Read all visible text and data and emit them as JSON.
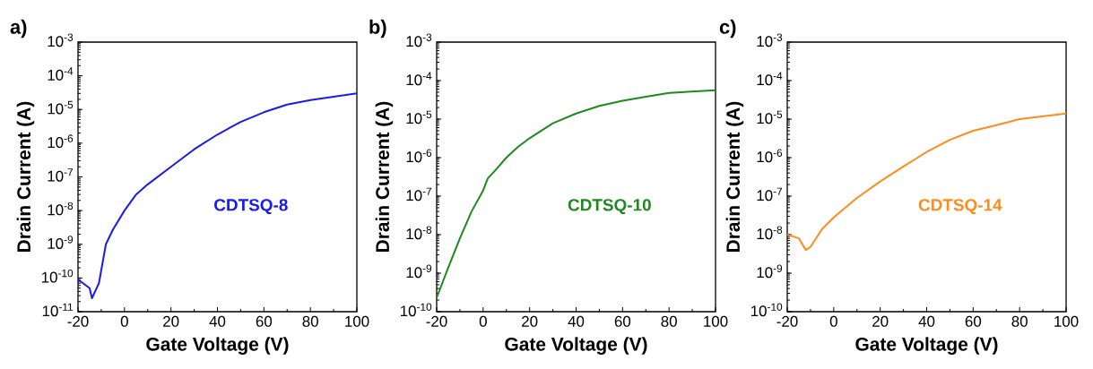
{
  "chart_data": [
    {
      "type": "line",
      "title": "a)",
      "xlabel": "Gate Voltage (V)",
      "ylabel": "Drain Current (A)",
      "log": "y",
      "xlim": [
        -20,
        100
      ],
      "xticks": [
        -20,
        0,
        20,
        40,
        60,
        80,
        100
      ],
      "ylim": [
        1e-11,
        0.001
      ],
      "yticks": [
        {
          "value": 1e-11,
          "label": "10$^{-11}$"
        },
        {
          "value": 1e-10,
          "label": "10$^{-10}$"
        },
        {
          "value": 1e-09,
          "label": "10$^{-9}$"
        },
        {
          "value": 1e-08,
          "label": "10$^{-8}$"
        },
        {
          "value": 1e-07,
          "label": "10$^{-7}$"
        },
        {
          "value": 1e-06,
          "label": "10$^{-6}$"
        },
        {
          "value": 1e-05,
          "label": "10$^{-5}$"
        },
        {
          "value": 0.0001,
          "label": "10$^{-4}$"
        },
        {
          "value": 0.001,
          "label": "10$^{-3}$"
        }
      ],
      "series": [
        {
          "name": "CDTSQ-8",
          "color": "#1a1aee",
          "x": [
            -20,
            -15,
            -14,
            -11,
            -8,
            -5,
            0,
            5,
            10,
            20,
            30,
            40,
            50,
            60,
            70,
            80,
            90,
            100
          ],
          "values": [
            9e-11,
            5e-11,
            2.5e-11,
            7e-11,
            1e-09,
            2.7e-09,
            1e-08,
            3e-08,
            6e-08,
            2e-07,
            6.6e-07,
            1.8e-06,
            4.3e-06,
            8.3e-06,
            1.4e-05,
            1.9e-05,
            2.4e-05,
            3e-05
          ]
        }
      ]
    },
    {
      "type": "line",
      "title": "b)",
      "xlabel": "Gate Voltage (V)",
      "ylabel": "Drain Current (A)",
      "log": "y",
      "xlim": [
        -20,
        100
      ],
      "xticks": [
        -20,
        0,
        20,
        40,
        60,
        80,
        100
      ],
      "ylim": [
        1e-10,
        0.001
      ],
      "yticks": [
        {
          "value": 1e-10,
          "label": "10$^{-10}$"
        },
        {
          "value": 1e-09,
          "label": "10$^{-9}$"
        },
        {
          "value": 1e-08,
          "label": "10$^{-8}$"
        },
        {
          "value": 1e-07,
          "label": "10$^{-7}$"
        },
        {
          "value": 1e-06,
          "label": "10$^{-6}$"
        },
        {
          "value": 1e-05,
          "label": "10$^{-5}$"
        },
        {
          "value": 0.0001,
          "label": "10$^{-4}$"
        },
        {
          "value": 0.001,
          "label": "10$^{-3}$"
        }
      ],
      "series": [
        {
          "name": "CDTSQ-10",
          "color": "#1e8a1e",
          "x": [
            -20,
            -15,
            -10,
            -5,
            0,
            2,
            5,
            10,
            15,
            20,
            30,
            40,
            50,
            60,
            70,
            80,
            100
          ],
          "values": [
            2.3e-10,
            1.4e-09,
            8e-09,
            4e-08,
            1.4e-07,
            2.9e-07,
            4.5e-07,
            1e-06,
            1.9e-06,
            3.2e-06,
            7.8e-06,
            1.4e-05,
            2.2e-05,
            3e-05,
            3.8e-05,
            4.8e-05,
            5.6e-05
          ]
        }
      ]
    },
    {
      "type": "line",
      "title": "c)",
      "xlabel": "Gate Voltage (V)",
      "ylabel": "Drain Current (A)",
      "log": "y",
      "xlim": [
        -20,
        100
      ],
      "xticks": [
        -20,
        0,
        20,
        40,
        60,
        80,
        100
      ],
      "ylim": [
        1e-10,
        0.001
      ],
      "yticks": [
        {
          "value": 1e-10,
          "label": "10$^{-10}$"
        },
        {
          "value": 1e-09,
          "label": "10$^{-9}$"
        },
        {
          "value": 1e-08,
          "label": "10$^{-8}$"
        },
        {
          "value": 1e-07,
          "label": "10$^{-7}$"
        },
        {
          "value": 1e-06,
          "label": "10$^{-6}$"
        },
        {
          "value": 1e-05,
          "label": "10$^{-5}$"
        },
        {
          "value": 0.0001,
          "label": "10$^{-4}$"
        },
        {
          "value": 0.001,
          "label": "10$^{-3}$"
        }
      ],
      "series": [
        {
          "name": "CDTSQ-14",
          "color": "#ff8c1a",
          "x": [
            -20,
            -15,
            -12,
            -10,
            -5,
            0,
            10,
            20,
            30,
            40,
            50,
            60,
            70,
            80,
            100
          ],
          "values": [
            1e-08,
            8e-09,
            4e-09,
            4.8e-09,
            1.4e-08,
            2.8e-08,
            9e-08,
            2.4e-07,
            5.9e-07,
            1.4e-06,
            2.9e-06,
            5e-06,
            7e-06,
            1e-05,
            1.4e-05
          ]
        }
      ]
    }
  ]
}
